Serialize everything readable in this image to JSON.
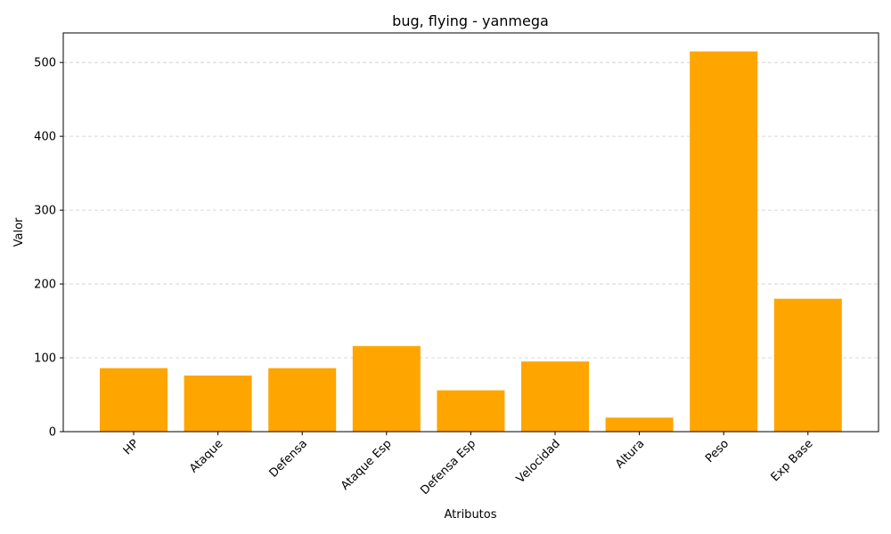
{
  "chart_data": {
    "type": "bar",
    "title": "bug, flying - yanmega",
    "xlabel": "Atributos",
    "ylabel": "Valor",
    "categories": [
      "HP",
      "Ataque",
      "Defensa",
      "Ataque Esp",
      "Defensa Esp",
      "Velocidad",
      "Altura",
      "Peso",
      "Exp Base"
    ],
    "values": [
      86,
      76,
      86,
      116,
      56,
      95,
      19,
      515,
      180
    ],
    "ylim": [
      0,
      540
    ],
    "yticks": [
      0,
      100,
      200,
      300,
      400,
      500
    ],
    "bar_color": "#FFA500",
    "grid": "y-dashed",
    "xtick_rotation": 45
  }
}
